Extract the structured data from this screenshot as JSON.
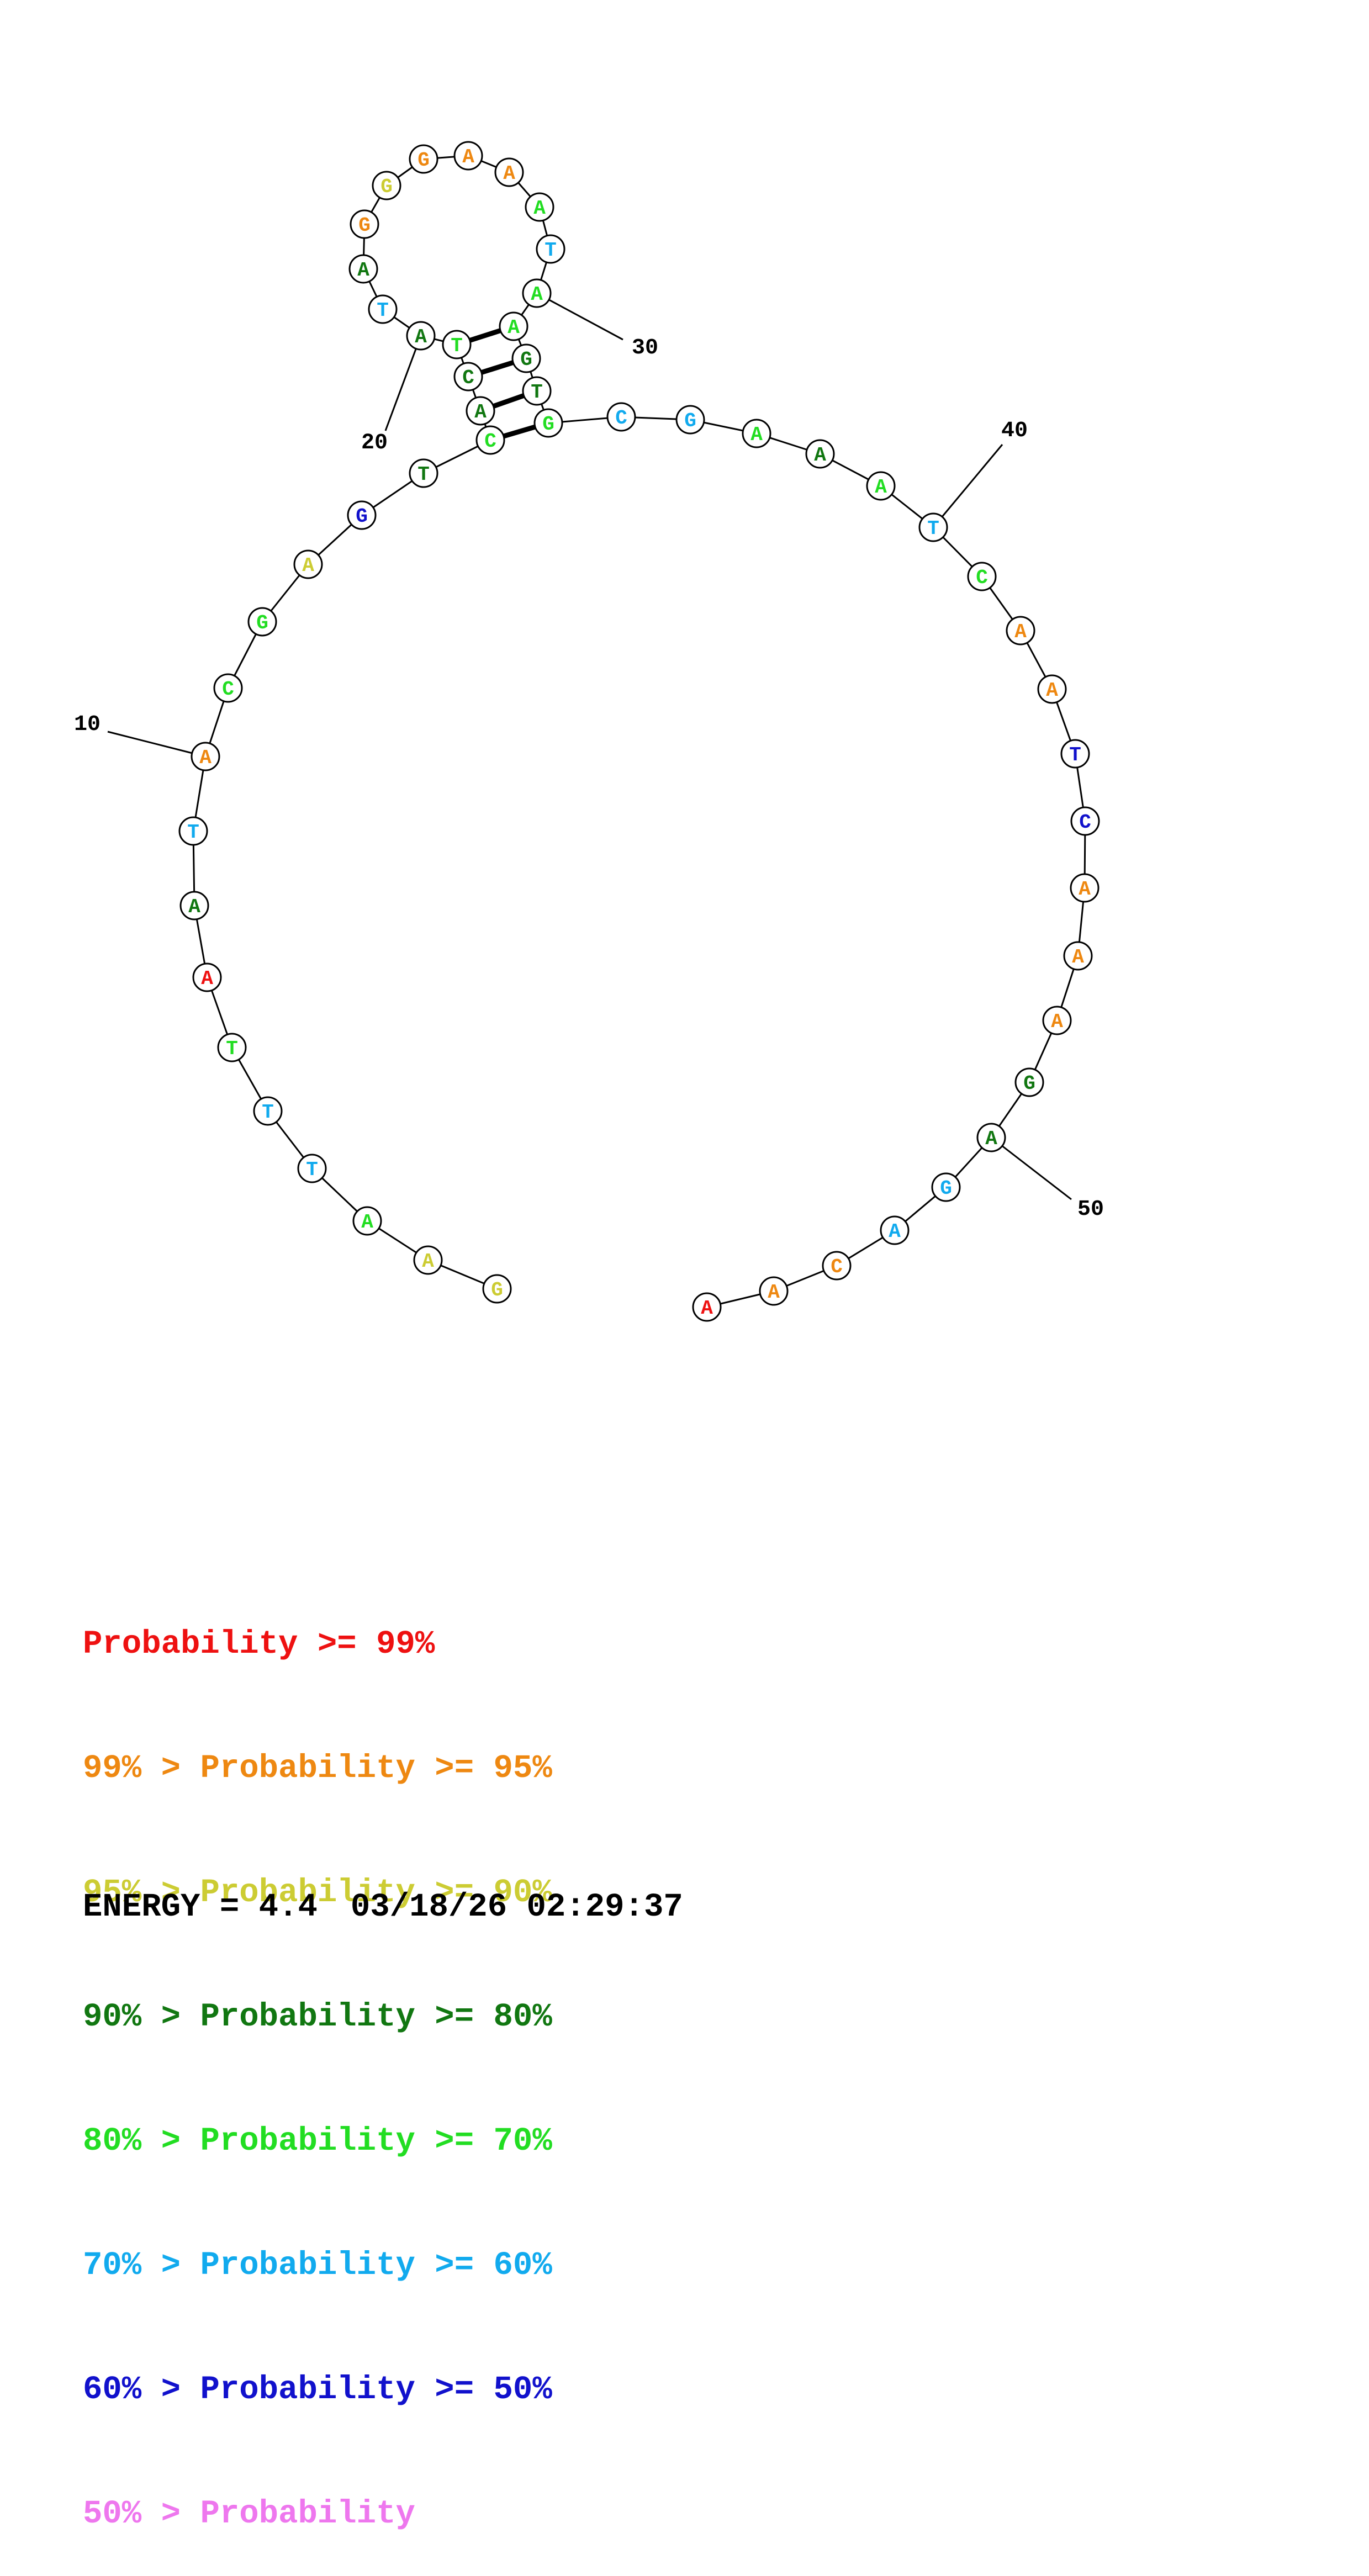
{
  "colors": {
    "c99": "#ee1111",
    "c95": "#ee8811",
    "c90": "#cccc33",
    "c80": "#117711",
    "c70": "#22dd22",
    "c60": "#11aaee",
    "c50": "#1111cc",
    "clow": "#ee77ee"
  },
  "bases": [
    {
      "n": 1,
      "b": "G",
      "c": "c90"
    },
    {
      "n": 2,
      "b": "A",
      "c": "c90"
    },
    {
      "n": 3,
      "b": "A",
      "c": "c70"
    },
    {
      "n": 4,
      "b": "T",
      "c": "c60"
    },
    {
      "n": 5,
      "b": "T",
      "c": "c60"
    },
    {
      "n": 6,
      "b": "T",
      "c": "c70"
    },
    {
      "n": 7,
      "b": "A",
      "c": "c99"
    },
    {
      "n": 8,
      "b": "A",
      "c": "c80"
    },
    {
      "n": 9,
      "b": "T",
      "c": "c60"
    },
    {
      "n": 10,
      "b": "A",
      "c": "c95"
    },
    {
      "n": 11,
      "b": "C",
      "c": "c70"
    },
    {
      "n": 12,
      "b": "G",
      "c": "c70"
    },
    {
      "n": 13,
      "b": "A",
      "c": "c90"
    },
    {
      "n": 14,
      "b": "G",
      "c": "c50"
    },
    {
      "n": 15,
      "b": "T",
      "c": "c80"
    },
    {
      "n": 16,
      "b": "C",
      "c": "c70"
    },
    {
      "n": 17,
      "b": "A",
      "c": "c80"
    },
    {
      "n": 18,
      "b": "C",
      "c": "c80"
    },
    {
      "n": 19,
      "b": "T",
      "c": "c70"
    },
    {
      "n": 20,
      "b": "A",
      "c": "c80"
    },
    {
      "n": 21,
      "b": "T",
      "c": "c60"
    },
    {
      "n": 22,
      "b": "A",
      "c": "c80"
    },
    {
      "n": 23,
      "b": "G",
      "c": "c95"
    },
    {
      "n": 24,
      "b": "G",
      "c": "c90"
    },
    {
      "n": 25,
      "b": "G",
      "c": "c95"
    },
    {
      "n": 26,
      "b": "A",
      "c": "c95"
    },
    {
      "n": 27,
      "b": "A",
      "c": "c95"
    },
    {
      "n": 28,
      "b": "A",
      "c": "c70"
    },
    {
      "n": 29,
      "b": "T",
      "c": "c60"
    },
    {
      "n": 30,
      "b": "A",
      "c": "c70"
    },
    {
      "n": 31,
      "b": "A",
      "c": "c70"
    },
    {
      "n": 32,
      "b": "G",
      "c": "c80"
    },
    {
      "n": 33,
      "b": "T",
      "c": "c80"
    },
    {
      "n": 34,
      "b": "G",
      "c": "c70"
    },
    {
      "n": 35,
      "b": "C",
      "c": "c60"
    },
    {
      "n": 36,
      "b": "G",
      "c": "c60"
    },
    {
      "n": 37,
      "b": "A",
      "c": "c70"
    },
    {
      "n": 38,
      "b": "A",
      "c": "c80"
    },
    {
      "n": 39,
      "b": "A",
      "c": "c70"
    },
    {
      "n": 40,
      "b": "T",
      "c": "c60"
    },
    {
      "n": 41,
      "b": "C",
      "c": "c70"
    },
    {
      "n": 42,
      "b": "A",
      "c": "c95"
    },
    {
      "n": 43,
      "b": "A",
      "c": "c95"
    },
    {
      "n": 44,
      "b": "T",
      "c": "c50"
    },
    {
      "n": 45,
      "b": "C",
      "c": "c50"
    },
    {
      "n": 46,
      "b": "A",
      "c": "c95"
    },
    {
      "n": 47,
      "b": "A",
      "c": "c95"
    },
    {
      "n": 48,
      "b": "A",
      "c": "c95"
    },
    {
      "n": 49,
      "b": "G",
      "c": "c80"
    },
    {
      "n": 50,
      "b": "A",
      "c": "c80"
    },
    {
      "n": 51,
      "b": "G",
      "c": "c60"
    },
    {
      "n": 52,
      "b": "A",
      "c": "c60"
    },
    {
      "n": 53,
      "b": "C",
      "c": "c95"
    },
    {
      "n": 54,
      "b": "A",
      "c": "c95"
    },
    {
      "n": 55,
      "b": "A",
      "c": "c99"
    }
  ],
  "pairs": [
    [
      16,
      34
    ],
    [
      17,
      33
    ],
    [
      18,
      32
    ],
    [
      19,
      31
    ]
  ],
  "number_labels": [
    "10",
    "20",
    "30",
    "40",
    "50"
  ],
  "legend": [
    {
      "prefix": "",
      "label": "Probability >= 99%",
      "c": "c99"
    },
    {
      "prefix": "99% > ",
      "label": "Probability >= 95%",
      "c": "c95"
    },
    {
      "prefix": "95% > ",
      "label": "Probability >= 90%",
      "c": "c90"
    },
    {
      "prefix": "90% > ",
      "label": "Probability >= 80%",
      "c": "c80"
    },
    {
      "prefix": "80% > ",
      "label": "Probability >= 70%",
      "c": "c70"
    },
    {
      "prefix": "70% > ",
      "label": "Probability >= 60%",
      "c": "c60"
    },
    {
      "prefix": "60% > ",
      "label": "Probability >= 50%",
      "c": "c50"
    },
    {
      "prefix": "50% > ",
      "label": "Probability",
      "c": "clow"
    }
  ],
  "footer": {
    "energy": "ENERGY = 4.4",
    "timestamp": "03/18/26 02:29:37"
  }
}
